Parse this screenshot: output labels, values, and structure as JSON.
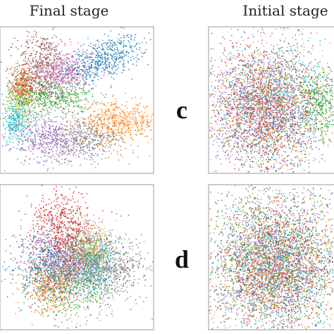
{
  "figure": {
    "column_titles": [
      "Final stage",
      "Initial stage"
    ],
    "row_labels": [
      "c",
      "d"
    ]
  },
  "chart_data": [
    {
      "type": "scatter",
      "title": "Final stage",
      "row": "c",
      "clusters": [
        {
          "color": "#1f77b4",
          "cx": 0.66,
          "cy": 0.78,
          "sx": 0.16,
          "sy": 0.07,
          "rot": 22,
          "weight": 1.2
        },
        {
          "color": "#8c564b",
          "cx": 0.27,
          "cy": 0.74,
          "sx": 0.09,
          "sy": 0.12,
          "rot": 0,
          "weight": 1.0
        },
        {
          "color": "#e377c2",
          "cx": 0.4,
          "cy": 0.7,
          "sx": 0.1,
          "sy": 0.08,
          "rot": 0,
          "weight": 0.8
        },
        {
          "color": "#2ca02c",
          "cx": 0.33,
          "cy": 0.52,
          "sx": 0.14,
          "sy": 0.06,
          "rot": 0,
          "weight": 0.9
        },
        {
          "color": "#bcbd22",
          "cx": 0.12,
          "cy": 0.54,
          "sx": 0.05,
          "sy": 0.1,
          "rot": 0,
          "weight": 0.6
        },
        {
          "color": "#17becf",
          "cx": 0.09,
          "cy": 0.35,
          "sx": 0.06,
          "sy": 0.08,
          "rot": 0,
          "weight": 0.6
        },
        {
          "color": "#d62728",
          "cx": 0.14,
          "cy": 0.6,
          "sx": 0.05,
          "sy": 0.06,
          "rot": 0,
          "weight": 0.4
        },
        {
          "color": "#ff7f0e",
          "cx": 0.78,
          "cy": 0.34,
          "sx": 0.13,
          "sy": 0.07,
          "rot": 0,
          "weight": 1.0
        },
        {
          "color": "#9467bd",
          "cx": 0.3,
          "cy": 0.22,
          "sx": 0.12,
          "sy": 0.09,
          "rot": 0,
          "weight": 0.9
        },
        {
          "color": "#7f7f7f",
          "cx": 0.55,
          "cy": 0.22,
          "sx": 0.13,
          "sy": 0.07,
          "rot": 0,
          "weight": 0.9
        }
      ]
    },
    {
      "type": "scatter",
      "title": "Initial stage",
      "row": "c",
      "clusters": [
        {
          "color": "#1f77b4",
          "cx": 0.45,
          "cy": 0.42,
          "sx": 0.24,
          "sy": 0.24,
          "rot": 0,
          "weight": 1.0
        },
        {
          "color": "#8c564b",
          "cx": 0.4,
          "cy": 0.46,
          "sx": 0.22,
          "sy": 0.24,
          "rot": 0,
          "weight": 1.0
        },
        {
          "color": "#e377c2",
          "cx": 0.4,
          "cy": 0.55,
          "sx": 0.22,
          "sy": 0.22,
          "rot": 0,
          "weight": 1.0
        },
        {
          "color": "#9467bd",
          "cx": 0.38,
          "cy": 0.4,
          "sx": 0.2,
          "sy": 0.2,
          "rot": 0,
          "weight": 0.9
        },
        {
          "color": "#ff7f0e",
          "cx": 0.48,
          "cy": 0.4,
          "sx": 0.22,
          "sy": 0.22,
          "rot": 0,
          "weight": 0.9
        },
        {
          "color": "#d62728",
          "cx": 0.42,
          "cy": 0.45,
          "sx": 0.22,
          "sy": 0.22,
          "rot": 0,
          "weight": 0.9
        },
        {
          "color": "#17becf",
          "cx": 0.55,
          "cy": 0.55,
          "sx": 0.24,
          "sy": 0.18,
          "rot": 0,
          "weight": 0.9
        },
        {
          "color": "#2ca02c",
          "cx": 0.85,
          "cy": 0.46,
          "sx": 0.12,
          "sy": 0.12,
          "rot": 0,
          "weight": 0.8
        },
        {
          "color": "#7f7f7f",
          "cx": 0.4,
          "cy": 0.42,
          "sx": 0.22,
          "sy": 0.22,
          "rot": 0,
          "weight": 0.8
        },
        {
          "color": "#bcbd22",
          "cx": 0.45,
          "cy": 0.5,
          "sx": 0.24,
          "sy": 0.22,
          "rot": 0,
          "weight": 0.7
        }
      ]
    },
    {
      "type": "scatter",
      "title": "Final stage",
      "row": "d",
      "clusters": [
        {
          "color": "#d62728",
          "cx": 0.4,
          "cy": 0.72,
          "sx": 0.1,
          "sy": 0.13,
          "rot": 0,
          "weight": 1.0
        },
        {
          "color": "#7f7f7f",
          "cx": 0.72,
          "cy": 0.42,
          "sx": 0.14,
          "sy": 0.1,
          "rot": 0,
          "weight": 1.0
        },
        {
          "color": "#2ca02c",
          "cx": 0.45,
          "cy": 0.3,
          "sx": 0.15,
          "sy": 0.12,
          "rot": 0,
          "weight": 1.0
        },
        {
          "color": "#9467bd",
          "cx": 0.4,
          "cy": 0.48,
          "sx": 0.14,
          "sy": 0.12,
          "rot": 0,
          "weight": 0.9
        },
        {
          "color": "#1f77b4",
          "cx": 0.3,
          "cy": 0.45,
          "sx": 0.12,
          "sy": 0.12,
          "rot": 0,
          "weight": 0.9
        },
        {
          "color": "#ff7f0e",
          "cx": 0.32,
          "cy": 0.3,
          "sx": 0.08,
          "sy": 0.1,
          "rot": 0,
          "weight": 0.8
        },
        {
          "color": "#e377c2",
          "cx": 0.5,
          "cy": 0.4,
          "sx": 0.14,
          "sy": 0.14,
          "rot": 0,
          "weight": 0.8
        },
        {
          "color": "#bcbd22",
          "cx": 0.58,
          "cy": 0.55,
          "sx": 0.08,
          "sy": 0.08,
          "rot": 0,
          "weight": 0.7
        },
        {
          "color": "#17becf",
          "cx": 0.62,
          "cy": 0.45,
          "sx": 0.08,
          "sy": 0.1,
          "rot": 0,
          "weight": 0.7
        },
        {
          "color": "#8c564b",
          "cx": 0.52,
          "cy": 0.55,
          "sx": 0.12,
          "sy": 0.12,
          "rot": 0,
          "weight": 0.7
        }
      ]
    },
    {
      "type": "scatter",
      "title": "Initial stage",
      "row": "d",
      "clusters": [
        {
          "color": "#1f77b4",
          "cx": 0.5,
          "cy": 0.45,
          "sx": 0.26,
          "sy": 0.24,
          "rot": 0,
          "weight": 1.0
        },
        {
          "color": "#ff7f0e",
          "cx": 0.5,
          "cy": 0.45,
          "sx": 0.26,
          "sy": 0.24,
          "rot": 0,
          "weight": 1.0
        },
        {
          "color": "#2ca02c",
          "cx": 0.5,
          "cy": 0.45,
          "sx": 0.26,
          "sy": 0.24,
          "rot": 0,
          "weight": 1.0
        },
        {
          "color": "#d62728",
          "cx": 0.5,
          "cy": 0.45,
          "sx": 0.26,
          "sy": 0.24,
          "rot": 0,
          "weight": 1.0
        },
        {
          "color": "#9467bd",
          "cx": 0.5,
          "cy": 0.45,
          "sx": 0.26,
          "sy": 0.24,
          "rot": 0,
          "weight": 1.0
        },
        {
          "color": "#8c564b",
          "cx": 0.5,
          "cy": 0.45,
          "sx": 0.26,
          "sy": 0.24,
          "rot": 0,
          "weight": 1.0
        },
        {
          "color": "#e377c2",
          "cx": 0.5,
          "cy": 0.45,
          "sx": 0.26,
          "sy": 0.24,
          "rot": 0,
          "weight": 1.0
        },
        {
          "color": "#7f7f7f",
          "cx": 0.5,
          "cy": 0.45,
          "sx": 0.26,
          "sy": 0.24,
          "rot": 0,
          "weight": 1.0
        },
        {
          "color": "#bcbd22",
          "cx": 0.5,
          "cy": 0.45,
          "sx": 0.26,
          "sy": 0.24,
          "rot": 0,
          "weight": 1.0
        },
        {
          "color": "#17becf",
          "cx": 0.5,
          "cy": 0.45,
          "sx": 0.26,
          "sy": 0.24,
          "rot": 0,
          "weight": 1.0
        }
      ]
    }
  ]
}
